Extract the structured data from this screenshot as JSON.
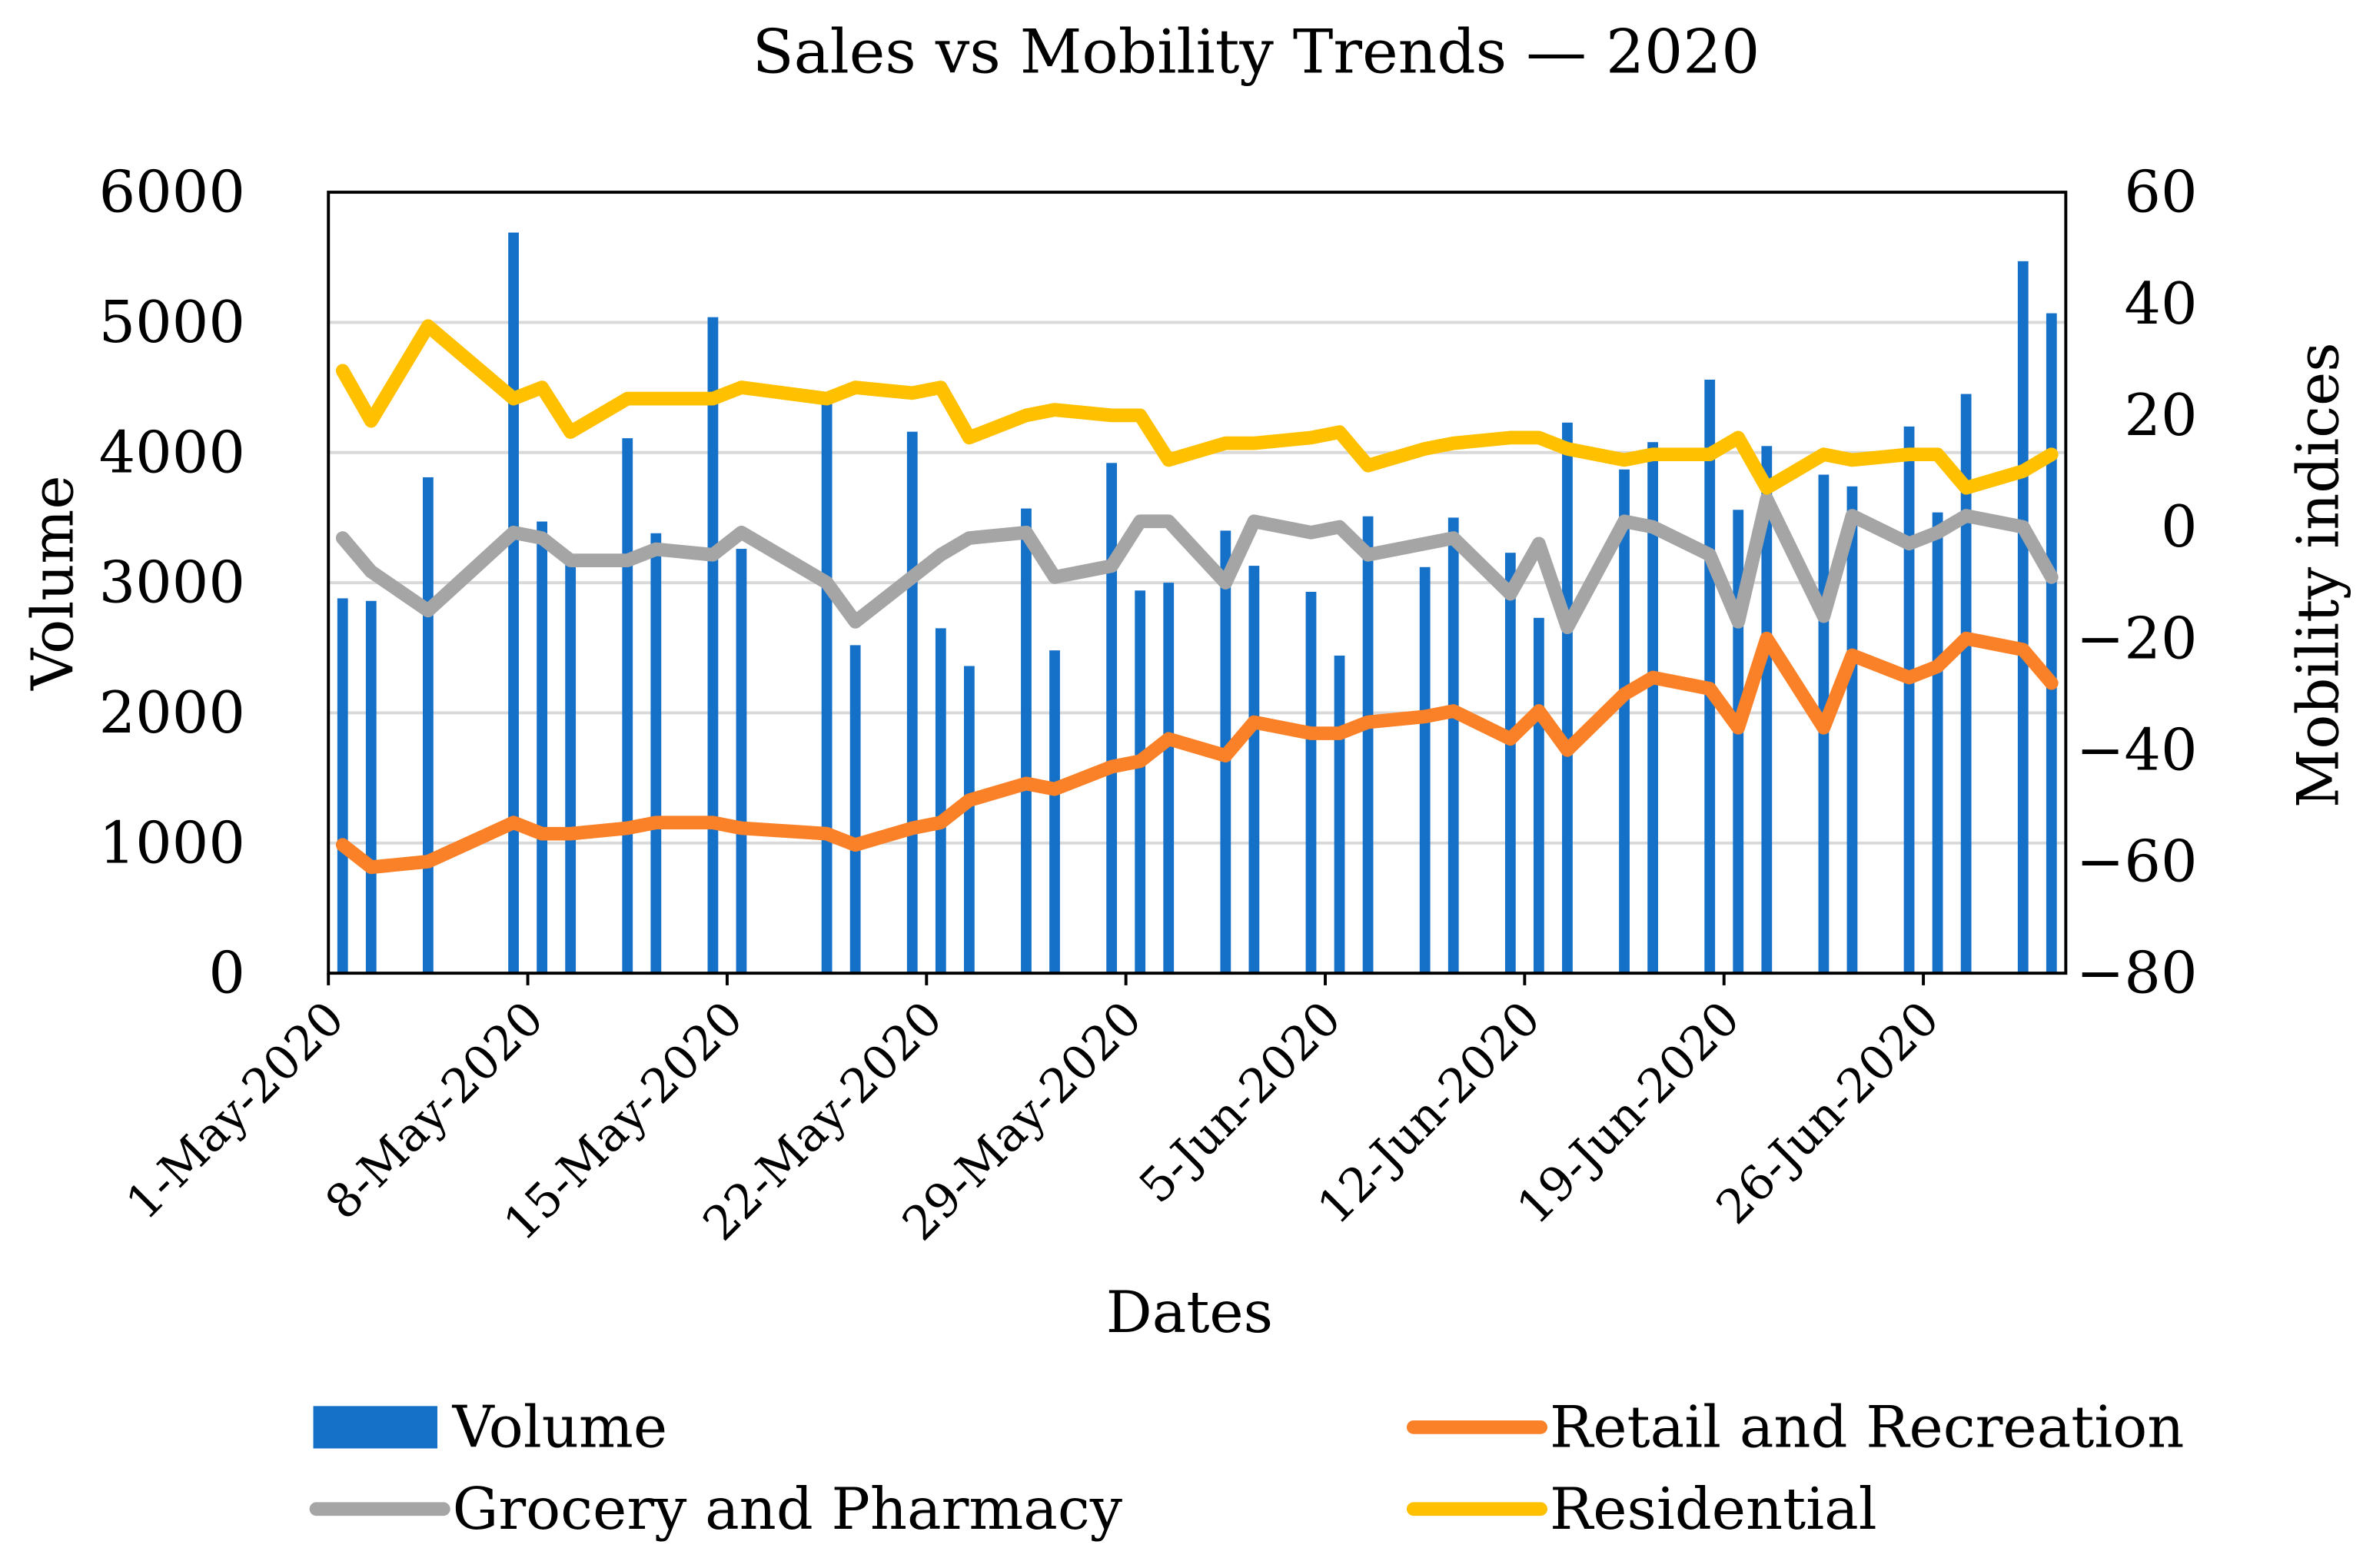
{
  "chart_data": {
    "type": "bar+line",
    "title": "Sales vs Mobility Trends — 2020",
    "xlabel": "Dates",
    "ylabel_left": "Volume",
    "ylabel_right": "Mobility indices",
    "ylim_left": [
      0,
      6000
    ],
    "ylim_right": [
      -80,
      60
    ],
    "yticks_left": [
      "0",
      "1000",
      "2000",
      "3000",
      "4000",
      "5000",
      "6000"
    ],
    "yticks_right": [
      "−80",
      "−60",
      "−40",
      "−20",
      "0",
      "20",
      "40",
      "60"
    ],
    "xlim": [
      "2020-05-01",
      "2020-06-30"
    ],
    "xticks": [
      {
        "date": "2020-05-01",
        "label": "1-May-2020"
      },
      {
        "date": "2020-05-08",
        "label": "8-May-2020"
      },
      {
        "date": "2020-05-15",
        "label": "15-May-2020"
      },
      {
        "date": "2020-05-22",
        "label": "22-May-2020"
      },
      {
        "date": "2020-05-29",
        "label": "29-May-2020"
      },
      {
        "date": "2020-06-05",
        "label": "5-Jun-2020"
      },
      {
        "date": "2020-06-12",
        "label": "12-Jun-2020"
      },
      {
        "date": "2020-06-19",
        "label": "19-Jun-2020"
      },
      {
        "date": "2020-06-26",
        "label": "26-Jun-2020"
      }
    ],
    "grid": "horizontal",
    "legend_position": "bottom",
    "dates": [
      "2020-05-01",
      "2020-05-02",
      "2020-05-04",
      "2020-05-07",
      "2020-05-08",
      "2020-05-09",
      "2020-05-11",
      "2020-05-12",
      "2020-05-14",
      "2020-05-15",
      "2020-05-18",
      "2020-05-19",
      "2020-05-21",
      "2020-05-22",
      "2020-05-23",
      "2020-05-25",
      "2020-05-26",
      "2020-05-28",
      "2020-05-29",
      "2020-05-30",
      "2020-06-01",
      "2020-06-02",
      "2020-06-04",
      "2020-06-05",
      "2020-06-06",
      "2020-06-08",
      "2020-06-09",
      "2020-06-11",
      "2020-06-12",
      "2020-06-13",
      "2020-06-15",
      "2020-06-16",
      "2020-06-18",
      "2020-06-19",
      "2020-06-20",
      "2020-06-22",
      "2020-06-23",
      "2020-06-25",
      "2020-06-26",
      "2020-06-27",
      "2020-06-29",
      "2020-06-30"
    ],
    "series": [
      {
        "name": "Volume",
        "type": "bar",
        "axis": "left",
        "color": "#1570c8",
        "values": [
          2880,
          2860,
          3810,
          5690,
          3470,
          3150,
          4110,
          3380,
          5040,
          3260,
          4450,
          2520,
          4160,
          2650,
          2360,
          3570,
          2480,
          3920,
          2940,
          3000,
          3400,
          3130,
          2930,
          2440,
          3510,
          3120,
          3500,
          3230,
          2730,
          4230,
          3870,
          4080,
          4560,
          3560,
          4050,
          3830,
          3740,
          4200,
          3540,
          4450,
          5470,
          5070
        ]
      },
      {
        "name": "Retail and Recreation",
        "type": "line",
        "axis": "right",
        "color": "#fb8128",
        "values": [
          -57,
          -61,
          -60,
          -53,
          -55,
          -55,
          -54,
          -53,
          -53,
          -54,
          -55,
          -57,
          -54,
          -53,
          -49,
          -46,
          -47,
          -43,
          -42,
          -38,
          -41,
          -35,
          -37,
          -37,
          -35,
          -34,
          -33,
          -38,
          -33,
          -40,
          -30,
          -27,
          -29,
          -36,
          -20,
          -36,
          -23,
          -27,
          -25,
          -20,
          -22,
          -28
        ]
      },
      {
        "name": "Grocery and Pharmacy",
        "type": "line",
        "axis": "right",
        "color": "#a5a5a5",
        "values": [
          -2,
          -8,
          -15,
          -1,
          -2,
          -6,
          -6,
          -4,
          -5,
          -1,
          -10,
          -17,
          -9,
          -5,
          -2,
          -1,
          -9,
          -7,
          1,
          1,
          -10,
          1,
          -1,
          0,
          -5,
          -3,
          -2,
          -12,
          -3,
          -18,
          1,
          0,
          -5,
          -17,
          5,
          -16,
          2,
          -3,
          -1,
          2,
          0,
          -9
        ]
      },
      {
        "name": "Residential",
        "type": "line",
        "axis": "right",
        "color": "#ffc000",
        "values": [
          28,
          19,
          36,
          23,
          25,
          17,
          23,
          23,
          23,
          25,
          23,
          25,
          24,
          25,
          16,
          20,
          21,
          20,
          20,
          12,
          15,
          15,
          16,
          17,
          11,
          14,
          15,
          16,
          16,
          14,
          12,
          13,
          13,
          16,
          7,
          13,
          12,
          13,
          13,
          7,
          10,
          13
        ]
      }
    ]
  }
}
